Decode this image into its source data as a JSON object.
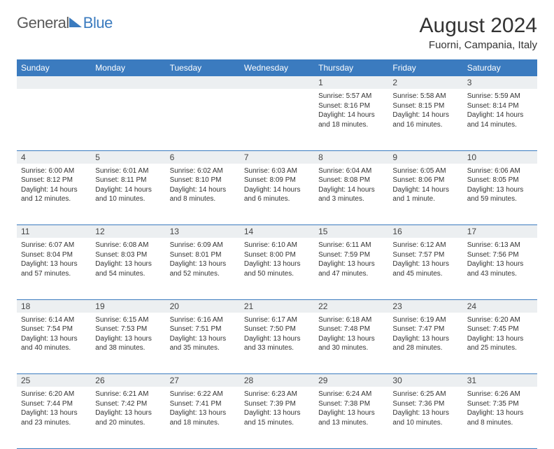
{
  "logo": {
    "part1": "General",
    "part2": "Blue"
  },
  "title": "August 2024",
  "location": "Fuorni, Campania, Italy",
  "colors": {
    "header_bg": "#3b7bbf",
    "header_fg": "#ffffff",
    "daynum_bg": "#eceff1",
    "border": "#3b7bbf",
    "text": "#333333"
  },
  "weekdays": [
    "Sunday",
    "Monday",
    "Tuesday",
    "Wednesday",
    "Thursday",
    "Friday",
    "Saturday"
  ],
  "weeks": [
    [
      {
        "day": "",
        "sunrise": "",
        "sunset": "",
        "daylight": ""
      },
      {
        "day": "",
        "sunrise": "",
        "sunset": "",
        "daylight": ""
      },
      {
        "day": "",
        "sunrise": "",
        "sunset": "",
        "daylight": ""
      },
      {
        "day": "",
        "sunrise": "",
        "sunset": "",
        "daylight": ""
      },
      {
        "day": "1",
        "sunrise": "Sunrise: 5:57 AM",
        "sunset": "Sunset: 8:16 PM",
        "daylight": "Daylight: 14 hours and 18 minutes."
      },
      {
        "day": "2",
        "sunrise": "Sunrise: 5:58 AM",
        "sunset": "Sunset: 8:15 PM",
        "daylight": "Daylight: 14 hours and 16 minutes."
      },
      {
        "day": "3",
        "sunrise": "Sunrise: 5:59 AM",
        "sunset": "Sunset: 8:14 PM",
        "daylight": "Daylight: 14 hours and 14 minutes."
      }
    ],
    [
      {
        "day": "4",
        "sunrise": "Sunrise: 6:00 AM",
        "sunset": "Sunset: 8:12 PM",
        "daylight": "Daylight: 14 hours and 12 minutes."
      },
      {
        "day": "5",
        "sunrise": "Sunrise: 6:01 AM",
        "sunset": "Sunset: 8:11 PM",
        "daylight": "Daylight: 14 hours and 10 minutes."
      },
      {
        "day": "6",
        "sunrise": "Sunrise: 6:02 AM",
        "sunset": "Sunset: 8:10 PM",
        "daylight": "Daylight: 14 hours and 8 minutes."
      },
      {
        "day": "7",
        "sunrise": "Sunrise: 6:03 AM",
        "sunset": "Sunset: 8:09 PM",
        "daylight": "Daylight: 14 hours and 6 minutes."
      },
      {
        "day": "8",
        "sunrise": "Sunrise: 6:04 AM",
        "sunset": "Sunset: 8:08 PM",
        "daylight": "Daylight: 14 hours and 3 minutes."
      },
      {
        "day": "9",
        "sunrise": "Sunrise: 6:05 AM",
        "sunset": "Sunset: 8:06 PM",
        "daylight": "Daylight: 14 hours and 1 minute."
      },
      {
        "day": "10",
        "sunrise": "Sunrise: 6:06 AM",
        "sunset": "Sunset: 8:05 PM",
        "daylight": "Daylight: 13 hours and 59 minutes."
      }
    ],
    [
      {
        "day": "11",
        "sunrise": "Sunrise: 6:07 AM",
        "sunset": "Sunset: 8:04 PM",
        "daylight": "Daylight: 13 hours and 57 minutes."
      },
      {
        "day": "12",
        "sunrise": "Sunrise: 6:08 AM",
        "sunset": "Sunset: 8:03 PM",
        "daylight": "Daylight: 13 hours and 54 minutes."
      },
      {
        "day": "13",
        "sunrise": "Sunrise: 6:09 AM",
        "sunset": "Sunset: 8:01 PM",
        "daylight": "Daylight: 13 hours and 52 minutes."
      },
      {
        "day": "14",
        "sunrise": "Sunrise: 6:10 AM",
        "sunset": "Sunset: 8:00 PM",
        "daylight": "Daylight: 13 hours and 50 minutes."
      },
      {
        "day": "15",
        "sunrise": "Sunrise: 6:11 AM",
        "sunset": "Sunset: 7:59 PM",
        "daylight": "Daylight: 13 hours and 47 minutes."
      },
      {
        "day": "16",
        "sunrise": "Sunrise: 6:12 AM",
        "sunset": "Sunset: 7:57 PM",
        "daylight": "Daylight: 13 hours and 45 minutes."
      },
      {
        "day": "17",
        "sunrise": "Sunrise: 6:13 AM",
        "sunset": "Sunset: 7:56 PM",
        "daylight": "Daylight: 13 hours and 43 minutes."
      }
    ],
    [
      {
        "day": "18",
        "sunrise": "Sunrise: 6:14 AM",
        "sunset": "Sunset: 7:54 PM",
        "daylight": "Daylight: 13 hours and 40 minutes."
      },
      {
        "day": "19",
        "sunrise": "Sunrise: 6:15 AM",
        "sunset": "Sunset: 7:53 PM",
        "daylight": "Daylight: 13 hours and 38 minutes."
      },
      {
        "day": "20",
        "sunrise": "Sunrise: 6:16 AM",
        "sunset": "Sunset: 7:51 PM",
        "daylight": "Daylight: 13 hours and 35 minutes."
      },
      {
        "day": "21",
        "sunrise": "Sunrise: 6:17 AM",
        "sunset": "Sunset: 7:50 PM",
        "daylight": "Daylight: 13 hours and 33 minutes."
      },
      {
        "day": "22",
        "sunrise": "Sunrise: 6:18 AM",
        "sunset": "Sunset: 7:48 PM",
        "daylight": "Daylight: 13 hours and 30 minutes."
      },
      {
        "day": "23",
        "sunrise": "Sunrise: 6:19 AM",
        "sunset": "Sunset: 7:47 PM",
        "daylight": "Daylight: 13 hours and 28 minutes."
      },
      {
        "day": "24",
        "sunrise": "Sunrise: 6:20 AM",
        "sunset": "Sunset: 7:45 PM",
        "daylight": "Daylight: 13 hours and 25 minutes."
      }
    ],
    [
      {
        "day": "25",
        "sunrise": "Sunrise: 6:20 AM",
        "sunset": "Sunset: 7:44 PM",
        "daylight": "Daylight: 13 hours and 23 minutes."
      },
      {
        "day": "26",
        "sunrise": "Sunrise: 6:21 AM",
        "sunset": "Sunset: 7:42 PM",
        "daylight": "Daylight: 13 hours and 20 minutes."
      },
      {
        "day": "27",
        "sunrise": "Sunrise: 6:22 AM",
        "sunset": "Sunset: 7:41 PM",
        "daylight": "Daylight: 13 hours and 18 minutes."
      },
      {
        "day": "28",
        "sunrise": "Sunrise: 6:23 AM",
        "sunset": "Sunset: 7:39 PM",
        "daylight": "Daylight: 13 hours and 15 minutes."
      },
      {
        "day": "29",
        "sunrise": "Sunrise: 6:24 AM",
        "sunset": "Sunset: 7:38 PM",
        "daylight": "Daylight: 13 hours and 13 minutes."
      },
      {
        "day": "30",
        "sunrise": "Sunrise: 6:25 AM",
        "sunset": "Sunset: 7:36 PM",
        "daylight": "Daylight: 13 hours and 10 minutes."
      },
      {
        "day": "31",
        "sunrise": "Sunrise: 6:26 AM",
        "sunset": "Sunset: 7:35 PM",
        "daylight": "Daylight: 13 hours and 8 minutes."
      }
    ]
  ]
}
